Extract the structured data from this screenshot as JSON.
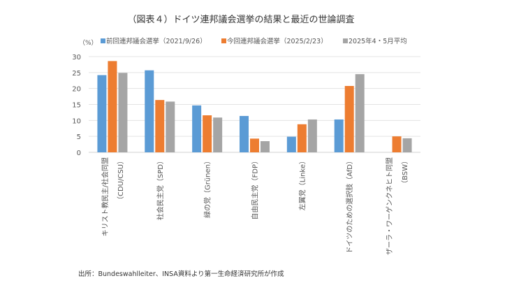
{
  "chart_data": {
    "type": "bar",
    "title": "（図表４）ドイツ連邦議会選挙の結果と最近の世論調査",
    "ylabel": "（%）",
    "ylim": [
      0,
      30
    ],
    "yticks": [
      0,
      5,
      10,
      15,
      20,
      25,
      30
    ],
    "grid": true,
    "legend_position": "top",
    "categories": [
      [
        "キリスト教民主/社会同盟",
        "（CDU/CSU）"
      ],
      [
        "社会民主党（SPD）"
      ],
      [
        "緑の党（Grünen）"
      ],
      [
        "自由民主党（FDP）"
      ],
      [
        "左翼党（Linke）"
      ],
      [
        "ドイツのための選択肢（AfD）"
      ],
      [
        "ザーラ・ワーゲンクネヒト同盟",
        "（BSW）"
      ]
    ],
    "series": [
      {
        "name": "前回連邦議会選挙（2021/9/26）",
        "color": "#5b9bd5",
        "values": [
          24.2,
          25.7,
          14.7,
          11.4,
          4.9,
          10.3,
          null
        ]
      },
      {
        "name": "今回連邦議会選挙（2025/2/23）",
        "color": "#ed7d31",
        "values": [
          28.6,
          16.4,
          11.6,
          4.3,
          8.8,
          20.8,
          5.0
        ]
      },
      {
        "name": "2025年4・5月平均",
        "color": "#a5a5a5",
        "values": [
          24.9,
          15.9,
          10.9,
          3.5,
          10.3,
          24.5,
          4.4
        ]
      }
    ],
    "source": "出所：Bundeswahlleiter、INSA資料より第一生命経済研究所が作成"
  }
}
